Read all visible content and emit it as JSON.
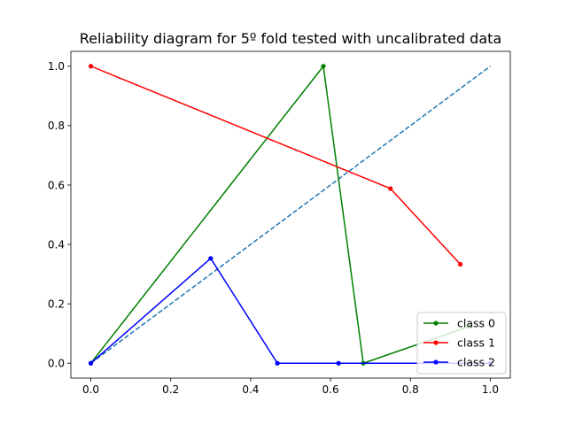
{
  "chart_data": {
    "type": "line",
    "title": "Reliability diagram for 5º fold tested with uncalibrated data",
    "xlabel": "",
    "ylabel": "",
    "xlim": [
      -0.05,
      1.05
    ],
    "ylim": [
      -0.05,
      1.05
    ],
    "x_ticks": [
      0.0,
      0.2,
      0.4,
      0.6,
      0.8,
      1.0
    ],
    "y_ticks": [
      0.0,
      0.2,
      0.4,
      0.6,
      0.8,
      1.0
    ],
    "x_tick_labels": [
      "0.0",
      "0.2",
      "0.4",
      "0.6",
      "0.8",
      "1.0"
    ],
    "y_tick_labels": [
      "0.0",
      "0.2",
      "0.4",
      "0.6",
      "0.8",
      "1.0"
    ],
    "grid": false,
    "legend_position": "lower-right",
    "reference_line": {
      "x": [
        0,
        1
      ],
      "y": [
        0,
        1
      ],
      "style": "dashed",
      "color": "#1f77b4"
    },
    "series": [
      {
        "name": "class 0",
        "color": "#008000",
        "x": [
          0.0,
          0.582,
          0.682,
          0.95
        ],
        "y": [
          0.0,
          1.0,
          0.0,
          0.125
        ]
      },
      {
        "name": "class 1",
        "color": "#ff0000",
        "x": [
          0.0,
          0.75,
          0.925
        ],
        "y": [
          1.0,
          0.588,
          0.333
        ]
      },
      {
        "name": "class 2",
        "color": "#0000ff",
        "x": [
          0.0,
          0.3,
          0.467,
          0.62,
          1.0
        ],
        "y": [
          0.0,
          0.353,
          0.0,
          0.0,
          0.0
        ]
      }
    ]
  }
}
